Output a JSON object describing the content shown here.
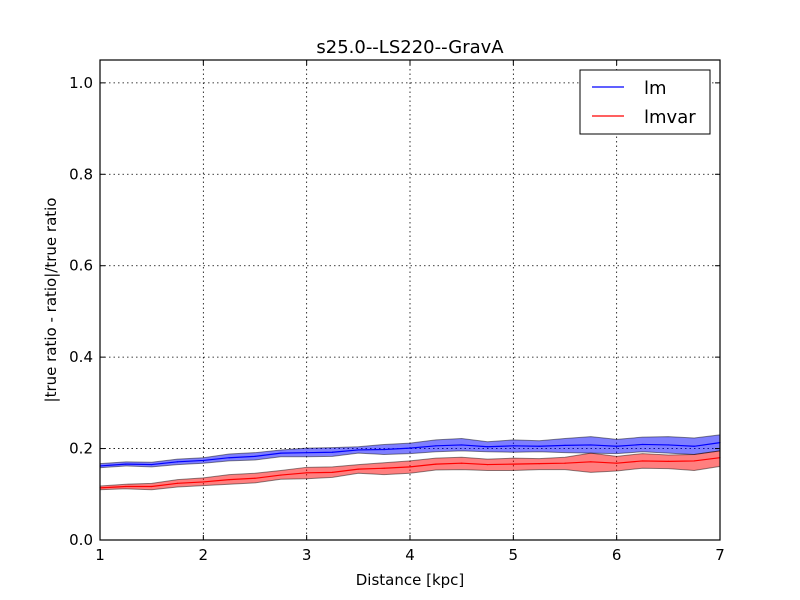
{
  "chart_data": {
    "type": "line",
    "title": "s25.0--LS220--GravA",
    "xlabel": "Distance [kpc]",
    "ylabel": "|true ratio - ratio|/true ratio",
    "xlim": [
      1,
      7
    ],
    "ylim": [
      0,
      1.05
    ],
    "x_ticks": [
      "1",
      "2",
      "3",
      "4",
      "5",
      "6",
      "7"
    ],
    "y_ticks": [
      "0.0",
      "0.2",
      "0.4",
      "0.6",
      "0.8",
      "1.0"
    ],
    "grid": true,
    "legend_position": "top-right",
    "x": [
      1.0,
      1.25,
      1.5,
      1.75,
      2.0,
      2.25,
      2.5,
      2.75,
      3.0,
      3.25,
      3.5,
      3.75,
      4.0,
      4.25,
      4.5,
      4.75,
      5.0,
      5.25,
      5.5,
      5.75,
      6.0,
      6.25,
      6.5,
      6.75,
      7.0
    ],
    "series": [
      {
        "name": "lm",
        "color": "#0000ff",
        "fill": "#0000ff",
        "values": [
          0.162,
          0.166,
          0.165,
          0.171,
          0.174,
          0.18,
          0.183,
          0.19,
          0.191,
          0.192,
          0.197,
          0.198,
          0.201,
          0.206,
          0.208,
          0.204,
          0.206,
          0.205,
          0.207,
          0.208,
          0.205,
          0.209,
          0.208,
          0.205,
          0.213
        ],
        "upper": [
          0.167,
          0.171,
          0.17,
          0.177,
          0.18,
          0.188,
          0.191,
          0.197,
          0.201,
          0.202,
          0.204,
          0.209,
          0.212,
          0.219,
          0.222,
          0.215,
          0.219,
          0.217,
          0.222,
          0.226,
          0.22,
          0.225,
          0.226,
          0.223,
          0.23
        ],
        "lower": [
          0.158,
          0.162,
          0.16,
          0.165,
          0.168,
          0.173,
          0.175,
          0.182,
          0.182,
          0.183,
          0.19,
          0.187,
          0.189,
          0.193,
          0.195,
          0.193,
          0.192,
          0.193,
          0.191,
          0.19,
          0.189,
          0.193,
          0.19,
          0.187,
          0.195
        ]
      },
      {
        "name": "lmvar",
        "color": "#ff0000",
        "fill": "#ff0000",
        "values": [
          0.114,
          0.117,
          0.117,
          0.124,
          0.127,
          0.132,
          0.135,
          0.142,
          0.147,
          0.148,
          0.155,
          0.157,
          0.16,
          0.166,
          0.168,
          0.165,
          0.166,
          0.167,
          0.168,
          0.171,
          0.168,
          0.173,
          0.172,
          0.173,
          0.18
        ],
        "upper": [
          0.118,
          0.122,
          0.124,
          0.132,
          0.136,
          0.143,
          0.146,
          0.152,
          0.159,
          0.16,
          0.165,
          0.169,
          0.173,
          0.179,
          0.181,
          0.177,
          0.179,
          0.178,
          0.181,
          0.19,
          0.183,
          0.189,
          0.186,
          0.187,
          0.195
        ],
        "lower": [
          0.11,
          0.112,
          0.11,
          0.116,
          0.119,
          0.122,
          0.125,
          0.133,
          0.134,
          0.137,
          0.146,
          0.143,
          0.146,
          0.153,
          0.154,
          0.152,
          0.152,
          0.154,
          0.154,
          0.148,
          0.151,
          0.157,
          0.156,
          0.152,
          0.161
        ]
      }
    ]
  }
}
